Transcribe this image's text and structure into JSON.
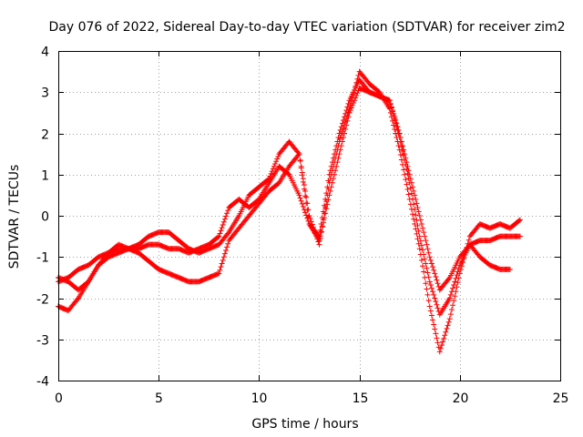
{
  "chart_data": {
    "type": "scatter",
    "title": "Day 076 of 2022, Sidereal Day-to-day VTEC variation (SDTVAR) for receiver zim2",
    "xlabel": "GPS time / hours",
    "ylabel": "SDTVAR / TECUs",
    "xlim": [
      0,
      25
    ],
    "ylim": [
      -4,
      4
    ],
    "x_ticks": [
      0,
      5,
      10,
      15,
      20,
      25
    ],
    "y_ticks": [
      -4,
      -3,
      -2,
      -1,
      0,
      1,
      2,
      3,
      4
    ],
    "x_tick_labels": [
      "0",
      "5",
      "10",
      "15",
      "20",
      "25"
    ],
    "y_tick_labels": [
      "-4",
      "-3",
      "-2",
      "-1",
      "0",
      "1",
      "2",
      "3",
      "4"
    ],
    "grid": true,
    "legend": "none",
    "marker": "+",
    "color": "#ff0000",
    "series": [
      {
        "x": [
          0,
          0.5,
          1,
          1.5,
          2,
          2.5,
          3,
          3.5,
          4,
          4.5,
          5,
          5.5,
          6,
          6.5,
          7,
          7.5,
          8,
          8.5,
          9,
          9.5,
          10,
          10.5,
          11,
          11.5,
          12,
          12.5,
          13,
          13.5,
          14,
          14.5,
          15,
          15.5,
          16,
          16.5,
          17,
          17.5,
          18,
          18.5,
          19,
          19.5,
          20,
          20.5,
          21,
          21.5,
          22,
          22.5
        ],
        "y": [
          -1.6,
          -1.5,
          -1.3,
          -1.2,
          -1.0,
          -0.9,
          -0.8,
          -0.8,
          -0.9,
          -1.1,
          -1.3,
          -1.4,
          -1.5,
          -1.6,
          -1.6,
          -1.5,
          -1.4,
          -0.6,
          -0.3,
          0.0,
          0.3,
          0.6,
          0.8,
          1.2,
          1.5,
          -0.2,
          -0.6,
          0.5,
          1.5,
          2.5,
          3.1,
          3.0,
          2.9,
          2.8,
          2.0,
          1.0,
          0.0,
          -1.0,
          -1.8,
          -1.5,
          -1.0,
          -0.7,
          -1.0,
          -1.2,
          -1.3,
          -1.3
        ]
      },
      {
        "x": [
          0,
          0.5,
          1,
          1.5,
          2,
          2.5,
          3,
          3.5,
          4,
          4.5,
          5,
          5.5,
          6,
          6.5,
          7,
          7.5,
          8,
          8.5,
          9,
          9.5,
          10,
          10.5,
          11,
          11.5,
          12,
          12.5,
          13,
          13.5,
          14,
          14.5,
          15,
          15.5,
          16,
          16.5,
          17,
          17.5,
          18,
          18.5,
          19,
          19.5,
          20,
          20.5,
          21,
          21.5,
          22,
          22.5,
          23
        ],
        "y": [
          -2.2,
          -2.3,
          -2.0,
          -1.6,
          -1.2,
          -0.9,
          -0.7,
          -0.8,
          -0.7,
          -0.5,
          -0.4,
          -0.4,
          -0.6,
          -0.8,
          -0.9,
          -0.8,
          -0.7,
          -0.4,
          0.0,
          0.5,
          0.7,
          0.9,
          1.5,
          1.8,
          1.5,
          0.0,
          -0.7,
          0.8,
          1.8,
          2.6,
          3.5,
          3.2,
          3.0,
          2.6,
          1.6,
          0.4,
          -0.8,
          -2.2,
          -3.3,
          -2.5,
          -1.4,
          -0.5,
          -0.2,
          -0.3,
          -0.2,
          -0.3,
          -0.1
        ]
      },
      {
        "x": [
          0,
          0.5,
          1,
          1.5,
          2,
          2.5,
          3,
          3.5,
          4,
          4.5,
          5,
          5.5,
          6,
          6.5,
          7,
          7.5,
          8,
          8.5,
          9,
          9.5,
          10,
          10.5,
          11,
          11.5,
          12,
          12.5,
          13,
          13.5,
          14,
          14.5,
          15,
          15.5,
          16,
          16.5,
          17,
          17.5,
          18,
          18.5,
          19,
          19.5,
          20,
          20.5,
          21,
          21.5,
          22,
          22.5,
          23
        ],
        "y": [
          -1.5,
          -1.6,
          -1.8,
          -1.6,
          -1.2,
          -1.0,
          -0.9,
          -0.8,
          -0.8,
          -0.7,
          -0.7,
          -0.8,
          -0.8,
          -0.9,
          -0.8,
          -0.7,
          -0.5,
          0.2,
          0.4,
          0.2,
          0.4,
          0.8,
          1.2,
          1.0,
          0.5,
          -0.2,
          -0.5,
          1.0,
          2.0,
          2.8,
          3.3,
          3.0,
          2.9,
          2.8,
          1.9,
          0.8,
          -0.5,
          -1.6,
          -2.4,
          -2.0,
          -1.2,
          -0.7,
          -0.6,
          -0.6,
          -0.5,
          -0.5,
          -0.5
        ]
      }
    ]
  }
}
